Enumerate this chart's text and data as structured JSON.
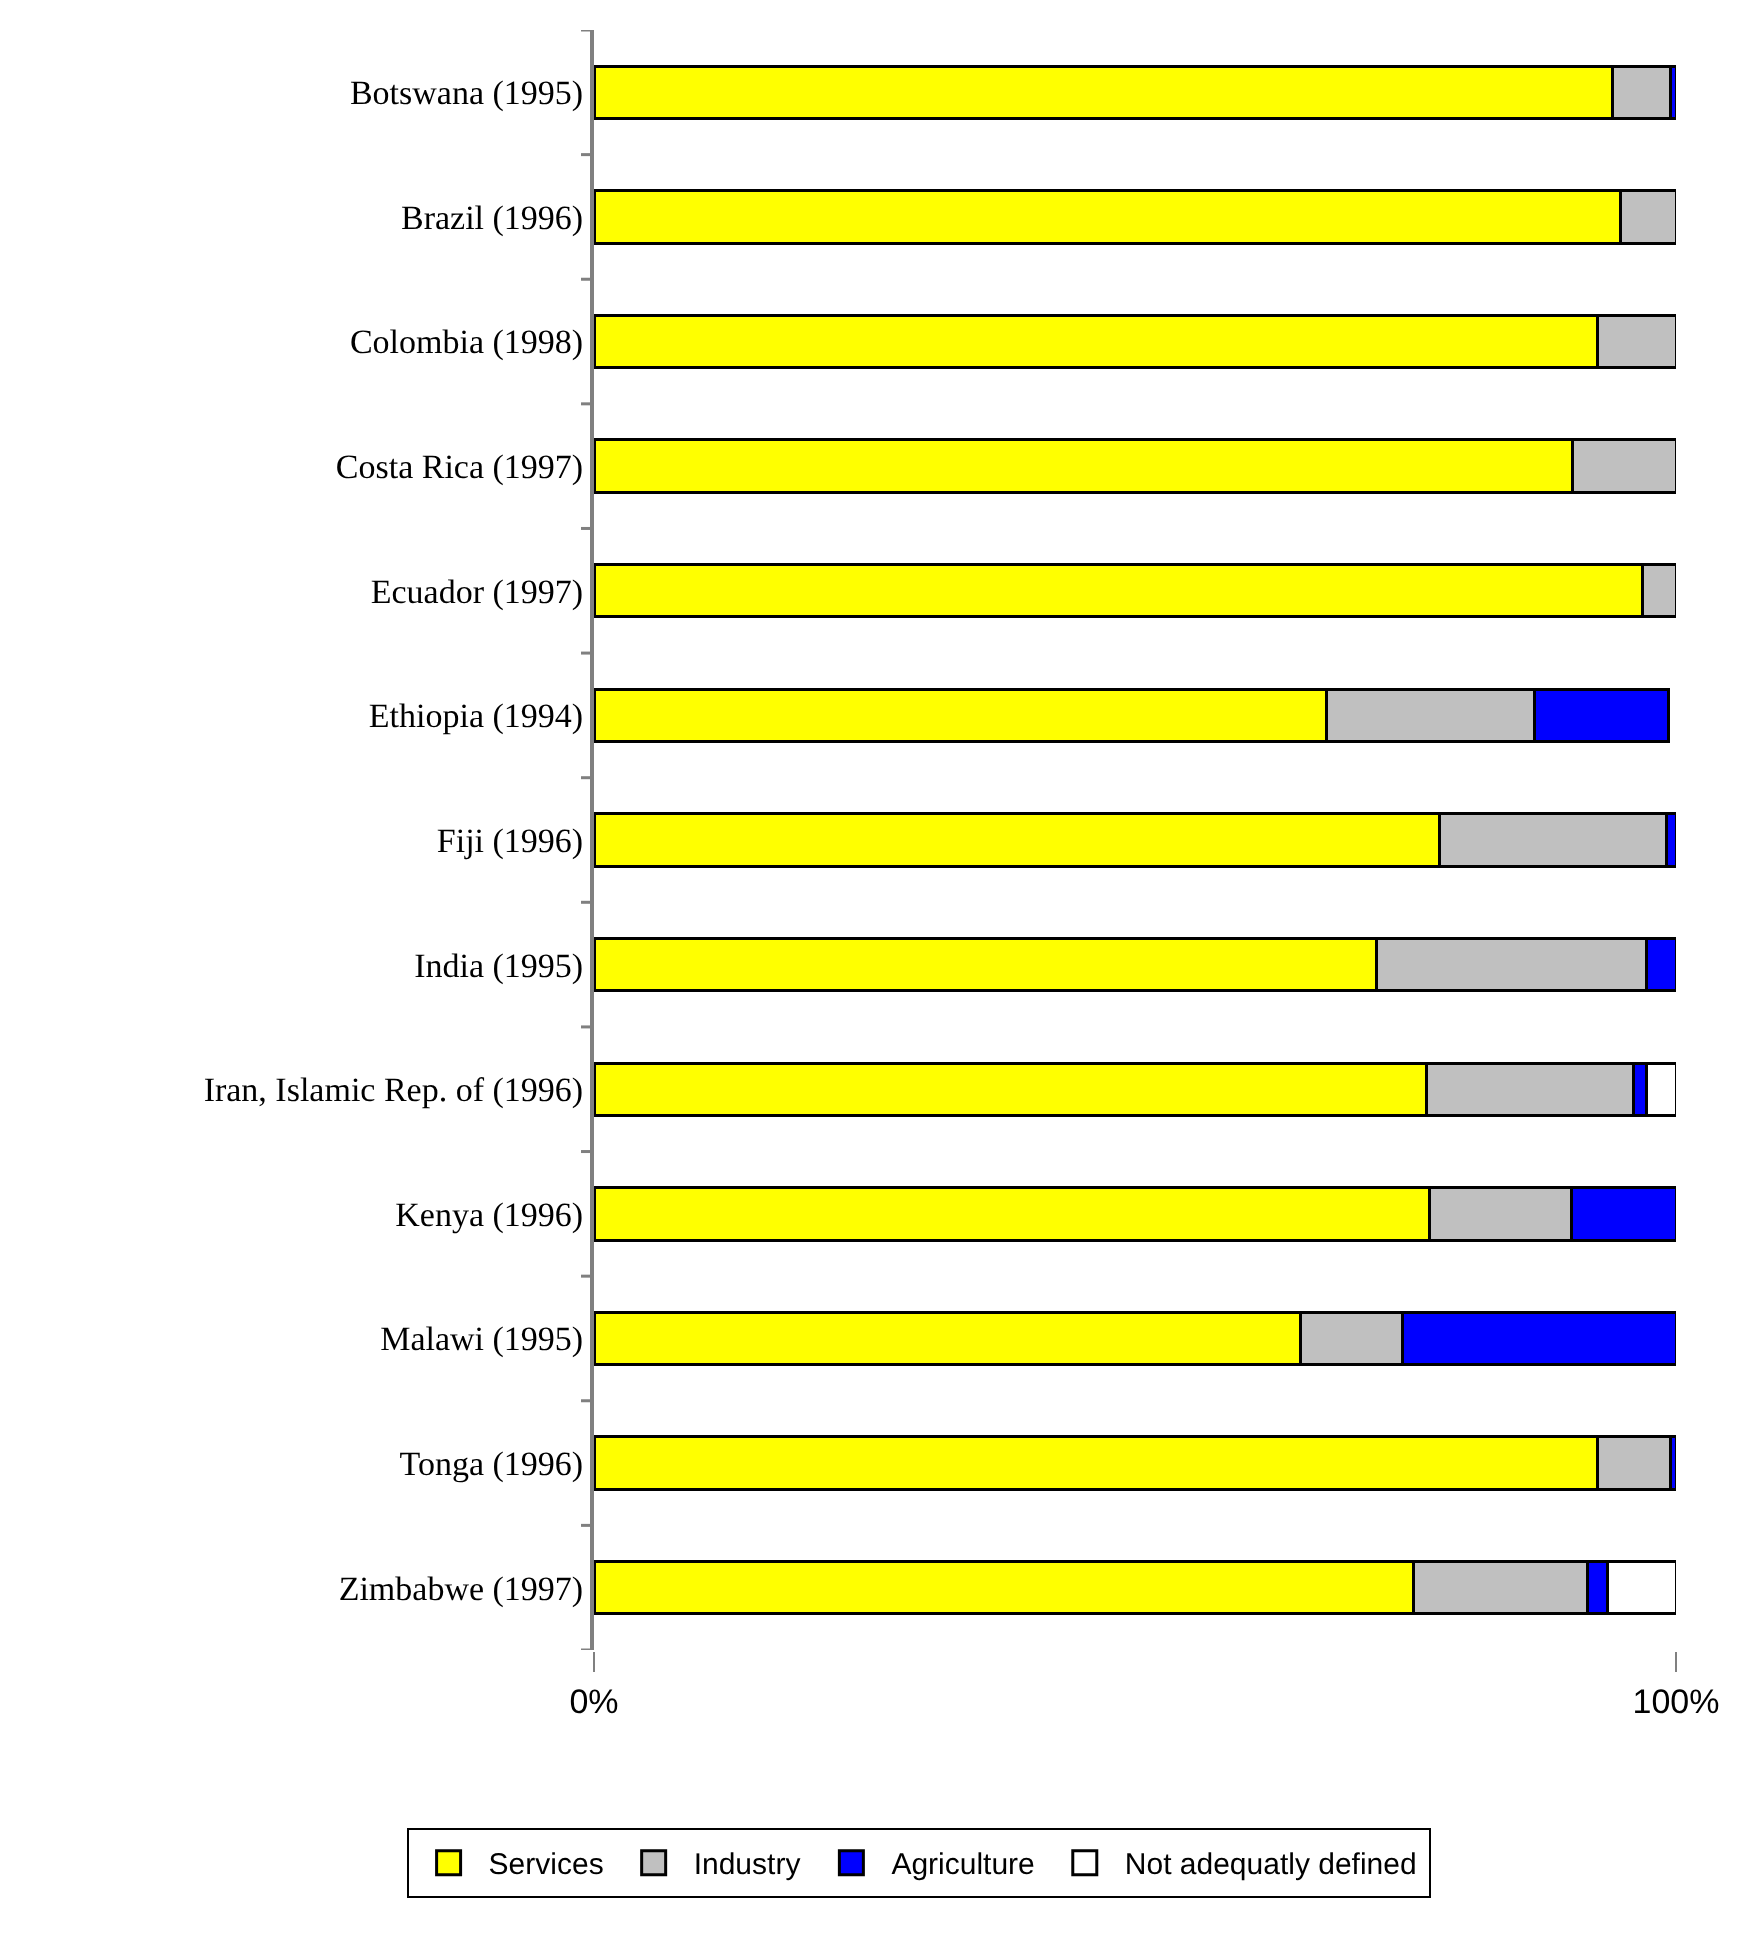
{
  "chart_data": {
    "type": "bar",
    "orientation": "horizontal",
    "stacked": true,
    "categories": [
      "Botswana (1995)",
      "Brazil (1996)",
      "Colombia (1998)",
      "Costa Rica (1997)",
      "Ecuador (1997)",
      "Ethiopia (1994)",
      "Fiji (1996)",
      "India (1995)",
      "Iran, Islamic Rep. of (1996)",
      "Kenya (1996)",
      "Malawi (1995)",
      "Tonga (1996)",
      "Zimbabwe (1997)"
    ],
    "series": [
      {
        "name": "Services",
        "color": "#ffff00",
        "values": [
          94.1,
          94.9,
          92.7,
          90.4,
          96.9,
          67.7,
          78.1,
          72.3,
          76.9,
          77.2,
          65.3,
          92.7,
          75.7
        ]
      },
      {
        "name": "Industry",
        "color": "#c0c0c0",
        "values": [
          5.4,
          5.1,
          7.3,
          9.6,
          3.1,
          19.2,
          21.0,
          25.0,
          19.2,
          13.1,
          9.4,
          6.8,
          16.1
        ]
      },
      {
        "name": "Agriculture",
        "color": "#0000ff",
        "values": [
          0.5,
          null,
          null,
          null,
          null,
          12.4,
          0.9,
          2.7,
          1.2,
          9.7,
          25.3,
          0.5,
          1.9
        ]
      },
      {
        "name": "Not adequatly defined",
        "color": "#ffffff",
        "values": [
          null,
          null,
          null,
          null,
          null,
          null,
          null,
          null,
          2.7,
          null,
          null,
          null,
          6.3
        ]
      }
    ],
    "xlim": [
      0,
      100
    ],
    "xticks": [
      {
        "value": 0,
        "label": "0%"
      },
      {
        "value": 100,
        "label": "100%"
      }
    ],
    "legend": "bottom"
  }
}
